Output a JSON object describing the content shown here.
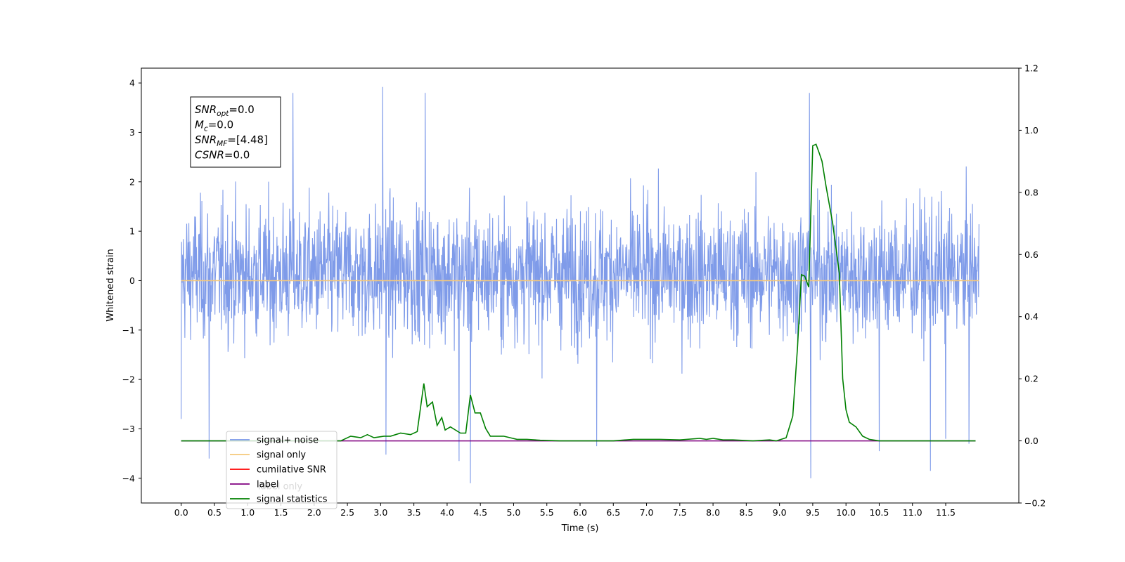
{
  "chart_data": {
    "type": "line",
    "title": "",
    "xlabel": "Time (s)",
    "ylabel": "Whitened strain",
    "y2label": "",
    "xlim": [
      -0.6,
      12.6
    ],
    "ylim": [
      -4.5,
      4.3
    ],
    "y2lim": [
      -0.2,
      1.2
    ],
    "xticks": [
      "0.0",
      "0.5",
      "1.0",
      "1.5",
      "2.0",
      "2.5",
      "3.0",
      "3.5",
      "4.0",
      "4.5",
      "5.0",
      "5.5",
      "6.0",
      "6.5",
      "7.0",
      "7.5",
      "8.0",
      "8.5",
      "9.0",
      "9.5",
      "10.0",
      "10.5",
      "11.0",
      "11.5"
    ],
    "yticks": [
      "4",
      "3",
      "2",
      "1",
      "0",
      "−1",
      "−2",
      "−3",
      "−4"
    ],
    "y2ticks": [
      "1.2",
      "1.0",
      "0.8",
      "0.6",
      "0.4",
      "0.2",
      "0.0",
      "−0.2"
    ],
    "grid": false,
    "legend_position": "lower-left",
    "noise": {
      "x_range": [
        0.0,
        12.0
      ],
      "typical_band": [
        -2.4,
        2.6
      ],
      "spikes": [
        {
          "x": 0.0,
          "y": -2.8
        },
        {
          "x": 0.42,
          "y": -3.6
        },
        {
          "x": 1.68,
          "y": 3.8
        },
        {
          "x": 3.03,
          "y": 3.92
        },
        {
          "x": 3.08,
          "y": -3.52
        },
        {
          "x": 3.67,
          "y": 3.8
        },
        {
          "x": 4.18,
          "y": -3.65
        },
        {
          "x": 4.35,
          "y": -4.1
        },
        {
          "x": 6.25,
          "y": -3.35
        },
        {
          "x": 9.45,
          "y": 3.8
        },
        {
          "x": 9.47,
          "y": -4.0
        },
        {
          "x": 10.5,
          "y": -3.45
        },
        {
          "x": 11.27,
          "y": -3.85
        },
        {
          "x": 11.85,
          "y": -3.3
        },
        {
          "x": 11.5,
          "y": -3.2
        }
      ]
    },
    "series": [
      {
        "name": "signal+ noise",
        "color": "#7896e8",
        "axis": "left",
        "style": "noise"
      },
      {
        "name": "signal only",
        "color": "#f5c87a",
        "axis": "left",
        "x": [
          0.0,
          12.0
        ],
        "y": [
          0.0,
          0.0
        ]
      },
      {
        "name": "cumilative SNR",
        "color": "#ff0000",
        "axis": "right",
        "x": [],
        "y": []
      },
      {
        "name": "label",
        "color": "#800080",
        "axis": "right",
        "x": [
          0.0,
          11.95
        ],
        "y": [
          0.0,
          0.0
        ]
      },
      {
        "name": "signal statistics",
        "color": "#008000",
        "axis": "right",
        "x": [
          0.0,
          2.4,
          2.55,
          2.7,
          2.8,
          2.9,
          3.05,
          3.15,
          3.3,
          3.45,
          3.55,
          3.65,
          3.7,
          3.78,
          3.85,
          3.92,
          3.97,
          4.05,
          4.2,
          4.28,
          4.35,
          4.42,
          4.5,
          4.58,
          4.65,
          4.75,
          4.85,
          4.95,
          5.05,
          5.2,
          5.4,
          5.7,
          6.0,
          6.5,
          6.8,
          7.2,
          7.5,
          7.8,
          7.9,
          8.0,
          8.15,
          8.3,
          8.6,
          8.85,
          8.95,
          9.1,
          9.2,
          9.27,
          9.33,
          9.38,
          9.44,
          9.5,
          9.55,
          9.6,
          9.64,
          9.7,
          9.8,
          9.9,
          9.95,
          10.0,
          10.05,
          10.15,
          10.25,
          10.35,
          10.5,
          11.0,
          11.5,
          11.95
        ],
        "y": [
          0.0,
          0.0,
          0.015,
          0.01,
          0.02,
          0.01,
          0.015,
          0.015,
          0.025,
          0.02,
          0.03,
          0.185,
          0.11,
          0.125,
          0.05,
          0.075,
          0.035,
          0.045,
          0.025,
          0.025,
          0.148,
          0.09,
          0.09,
          0.04,
          0.015,
          0.015,
          0.015,
          0.01,
          0.005,
          0.005,
          0.002,
          0.0,
          0.0,
          0.0,
          0.005,
          0.005,
          0.003,
          0.008,
          0.005,
          0.008,
          0.003,
          0.003,
          0.0,
          0.003,
          0.0,
          0.01,
          0.08,
          0.3,
          0.535,
          0.53,
          0.495,
          0.95,
          0.955,
          0.925,
          0.9,
          0.82,
          0.7,
          0.54,
          0.2,
          0.1,
          0.06,
          0.045,
          0.015,
          0.005,
          0.0,
          0.0,
          0.0,
          0.0
        ]
      }
    ],
    "annotations": [
      {
        "base": "SNR",
        "sub": "opt",
        "value": "=0.0"
      },
      {
        "base": "M",
        "sub": "c",
        "value": "=0.0"
      },
      {
        "base": "SNR",
        "sub": "MF",
        "value": "=[4.48]"
      },
      {
        "base": "CSNR",
        "sub": "",
        "value": "=0.0"
      }
    ],
    "hidden_legend_text": "label only"
  }
}
